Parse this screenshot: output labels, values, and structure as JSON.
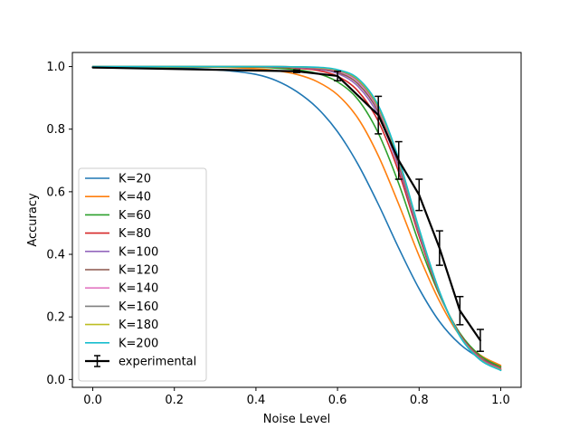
{
  "chart_data": {
    "type": "line",
    "xlabel": "Noise Level",
    "ylabel": "Accuracy",
    "xlim": [
      -0.05,
      1.05
    ],
    "ylim": [
      -0.025,
      1.045
    ],
    "xticks": [
      0.0,
      0.2,
      0.4,
      0.6,
      0.8,
      1.0
    ],
    "xtick_labels": [
      "0.0",
      "0.2",
      "0.4",
      "0.6",
      "0.8",
      "1.0"
    ],
    "yticks": [
      0.0,
      0.2,
      0.4,
      0.6,
      0.8,
      1.0
    ],
    "ytick_labels": [
      "0.0",
      "0.2",
      "0.4",
      "0.6",
      "0.8",
      "1.0"
    ],
    "grid": false,
    "legend_position": "lower-left",
    "x": [
      0.0,
      0.3,
      0.4,
      0.45,
      0.5,
      0.55,
      0.6,
      0.65,
      0.7,
      0.75,
      0.8,
      0.85,
      0.9,
      0.95,
      1.0
    ],
    "series": [
      {
        "name": "K=20",
        "color": "#1f77b4",
        "values": [
          0.999,
          0.99,
          0.975,
          0.955,
          0.92,
          0.868,
          0.792,
          0.688,
          0.56,
          0.42,
          0.29,
          0.185,
          0.113,
          0.068,
          0.041
        ]
      },
      {
        "name": "K=40",
        "color": "#ff7f0e",
        "values": [
          0.999,
          0.998,
          0.993,
          0.987,
          0.975,
          0.952,
          0.91,
          0.835,
          0.715,
          0.56,
          0.395,
          0.25,
          0.14,
          0.078,
          0.045
        ]
      },
      {
        "name": "K=60",
        "color": "#2ca02c",
        "values": [
          0.999,
          0.999,
          0.998,
          0.995,
          0.99,
          0.978,
          0.951,
          0.895,
          0.787,
          0.626,
          0.435,
          0.27,
          0.148,
          0.076,
          0.04
        ]
      },
      {
        "name": "K=80",
        "color": "#d62728",
        "values": [
          1.0,
          1.0,
          0.999,
          0.998,
          0.995,
          0.988,
          0.969,
          0.922,
          0.825,
          0.663,
          0.458,
          0.274,
          0.144,
          0.07,
          0.035
        ]
      },
      {
        "name": "K=100",
        "color": "#9467bd",
        "values": [
          1.0,
          1.0,
          1.0,
          0.999,
          0.997,
          0.992,
          0.978,
          0.937,
          0.844,
          0.678,
          0.466,
          0.276,
          0.142,
          0.068,
          0.033
        ]
      },
      {
        "name": "K=120",
        "color": "#8c564b",
        "values": [
          1.0,
          1.0,
          1.0,
          0.999,
          0.998,
          0.994,
          0.982,
          0.945,
          0.855,
          0.688,
          0.472,
          0.278,
          0.141,
          0.066,
          0.032
        ]
      },
      {
        "name": "K=140",
        "color": "#e377c2",
        "values": [
          1.0,
          1.0,
          1.0,
          1.0,
          0.999,
          0.996,
          0.986,
          0.952,
          0.863,
          0.695,
          0.476,
          0.279,
          0.14,
          0.065,
          0.031
        ]
      },
      {
        "name": "K=160",
        "color": "#7f7f7f",
        "values": [
          1.0,
          1.0,
          1.0,
          1.0,
          0.999,
          0.997,
          0.988,
          0.956,
          0.868,
          0.699,
          0.478,
          0.279,
          0.139,
          0.064,
          0.03
        ]
      },
      {
        "name": "K=180",
        "color": "#bcbd22",
        "values": [
          1.0,
          1.0,
          1.0,
          1.0,
          0.999,
          0.997,
          0.989,
          0.959,
          0.872,
          0.702,
          0.48,
          0.28,
          0.139,
          0.063,
          0.03
        ]
      },
      {
        "name": "K=200",
        "color": "#17becf",
        "values": [
          1.0,
          1.0,
          1.0,
          1.0,
          0.999,
          0.998,
          0.99,
          0.962,
          0.876,
          0.705,
          0.482,
          0.281,
          0.138,
          0.062,
          0.029
        ]
      }
    ],
    "experimental": {
      "name": "experimental",
      "color": "#000000",
      "x": [
        0.0,
        0.5,
        0.6,
        0.7,
        0.75,
        0.8,
        0.85,
        0.9,
        0.95
      ],
      "y": [
        0.997,
        0.985,
        0.97,
        0.845,
        0.7,
        0.59,
        0.42,
        0.22,
        0.125
      ],
      "yerr": [
        0.0,
        0.004,
        0.015,
        0.06,
        0.06,
        0.05,
        0.055,
        0.045,
        0.035
      ]
    }
  }
}
